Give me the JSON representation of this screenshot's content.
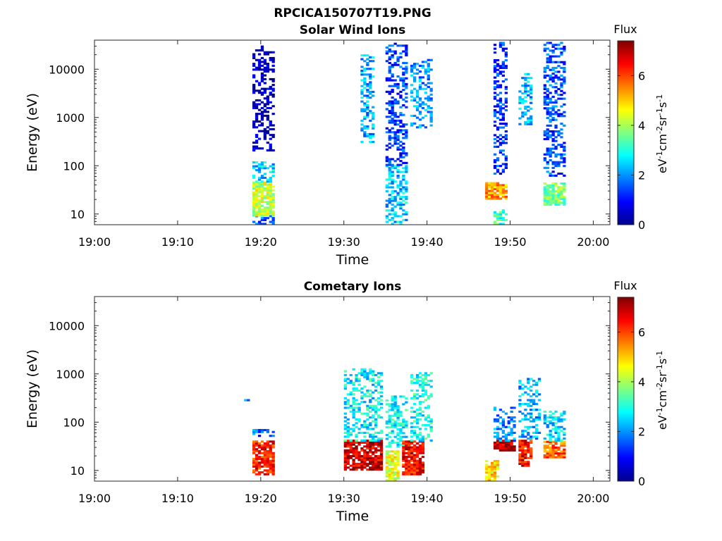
{
  "figure_title": "RPCICA150707T19.PNG",
  "colorbar": {
    "title": "Flux",
    "ticks": [
      "0",
      "2",
      "4",
      "6"
    ],
    "label_parts": [
      "eV",
      "-1",
      "cm",
      "-2",
      "sr",
      "-1",
      "s",
      "-1"
    ],
    "range": [
      0,
      7.4
    ],
    "colormap": "jet"
  },
  "chart_data": [
    {
      "type": "heatmap",
      "title": "Solar Wind Ions",
      "xlabel": "Time",
      "ylabel": "Energy (eV)",
      "x_ticks": [
        "19:00",
        "19:10",
        "19:20",
        "19:30",
        "19:40",
        "19:50",
        "20:00"
      ],
      "xlim": [
        "19:00",
        "20:02"
      ],
      "y_scale": "log",
      "y_ticks": [
        "10",
        "100",
        "1000",
        "10000"
      ],
      "ylim": [
        6,
        40000
      ],
      "z_range": [
        0,
        7.4
      ],
      "clusters": [
        {
          "t_start": "19:19",
          "t_end": "19:21",
          "e_min": 6,
          "e_max": 9,
          "flux": 1.5
        },
        {
          "t_start": "19:19",
          "t_end": "19:21",
          "e_min": 9,
          "e_max": 45,
          "flux": 4.2
        },
        {
          "t_start": "19:19",
          "t_end": "19:21",
          "e_min": 45,
          "e_max": 120,
          "flux": 2.5
        },
        {
          "t_start": "19:19",
          "t_end": "19:21",
          "e_min": 200,
          "e_max": 30000,
          "flux": 0.3
        },
        {
          "t_start": "19:32",
          "t_end": "19:33",
          "e_min": 300,
          "e_max": 20000,
          "flux": 2.2
        },
        {
          "t_start": "19:35",
          "t_end": "19:37",
          "e_min": 6,
          "e_max": 100,
          "flux": 2.4
        },
        {
          "t_start": "19:35",
          "t_end": "19:37",
          "e_min": 100,
          "e_max": 35000,
          "flux": 1.3
        },
        {
          "t_start": "19:38",
          "t_end": "19:40",
          "e_min": 600,
          "e_max": 15000,
          "flux": 2.0
        },
        {
          "t_start": "19:47",
          "t_end": "19:49",
          "e_min": 20,
          "e_max": 45,
          "flux": 5.3
        },
        {
          "t_start": "19:48",
          "t_end": "19:49",
          "e_min": 6,
          "e_max": 12,
          "flux": 3.2
        },
        {
          "t_start": "19:48",
          "t_end": "19:49",
          "e_min": 60,
          "e_max": 35000,
          "flux": 1.2
        },
        {
          "t_start": "19:51",
          "t_end": "19:52",
          "e_min": 700,
          "e_max": 8000,
          "flux": 2.2
        },
        {
          "t_start": "19:54",
          "t_end": "19:56",
          "e_min": 15,
          "e_max": 45,
          "flux": 3.6
        },
        {
          "t_start": "19:54",
          "t_end": "19:56",
          "e_min": 60,
          "e_max": 35000,
          "flux": 1.5
        }
      ]
    },
    {
      "type": "heatmap",
      "title": "Cometary Ions",
      "xlabel": "Time",
      "ylabel": "Energy (eV)",
      "x_ticks": [
        "19:00",
        "19:10",
        "19:20",
        "19:30",
        "19:40",
        "19:50",
        "20:00"
      ],
      "xlim": [
        "19:00",
        "20:02"
      ],
      "y_scale": "log",
      "y_ticks": [
        "10",
        "100",
        "1000",
        "10000"
      ],
      "ylim": [
        6,
        40000
      ],
      "z_range": [
        0,
        7.4
      ],
      "clusters": [
        {
          "t_start": "19:17",
          "t_end": "19:18",
          "e_min": 250,
          "e_max": 290,
          "flux": 1.8
        },
        {
          "t_start": "19:19",
          "t_end": "19:21",
          "e_min": 8,
          "e_max": 40,
          "flux": 6.3
        },
        {
          "t_start": "19:19",
          "t_end": "19:21",
          "e_min": 50,
          "e_max": 70,
          "flux": 1.6
        },
        {
          "t_start": "19:30",
          "t_end": "19:34",
          "e_min": 10,
          "e_max": 40,
          "flux": 6.8
        },
        {
          "t_start": "19:30",
          "t_end": "19:34",
          "e_min": 40,
          "e_max": 1300,
          "flux": 2.7
        },
        {
          "t_start": "19:35",
          "t_end": "19:36",
          "e_min": 6,
          "e_max": 25,
          "flux": 4.4
        },
        {
          "t_start": "19:35",
          "t_end": "19:37",
          "e_min": 30,
          "e_max": 350,
          "flux": 2.8
        },
        {
          "t_start": "19:37",
          "t_end": "19:39",
          "e_min": 8,
          "e_max": 40,
          "flux": 6.5
        },
        {
          "t_start": "19:38",
          "t_end": "19:40",
          "e_min": 40,
          "e_max": 1000,
          "flux": 2.9
        },
        {
          "t_start": "19:47",
          "t_end": "19:48",
          "e_min": 6,
          "e_max": 16,
          "flux": 4.8
        },
        {
          "t_start": "19:48",
          "t_end": "19:50",
          "e_min": 25,
          "e_max": 40,
          "flux": 7.0
        },
        {
          "t_start": "19:48",
          "t_end": "19:50",
          "e_min": 40,
          "e_max": 200,
          "flux": 1.9
        },
        {
          "t_start": "19:51",
          "t_end": "19:52",
          "e_min": 12,
          "e_max": 40,
          "flux": 6.5
        },
        {
          "t_start": "19:51",
          "t_end": "19:53",
          "e_min": 40,
          "e_max": 800,
          "flux": 2.2
        },
        {
          "t_start": "19:54",
          "t_end": "19:56",
          "e_min": 18,
          "e_max": 40,
          "flux": 5.8
        },
        {
          "t_start": "19:54",
          "t_end": "19:56",
          "e_min": 40,
          "e_max": 170,
          "flux": 2.5
        }
      ]
    }
  ]
}
